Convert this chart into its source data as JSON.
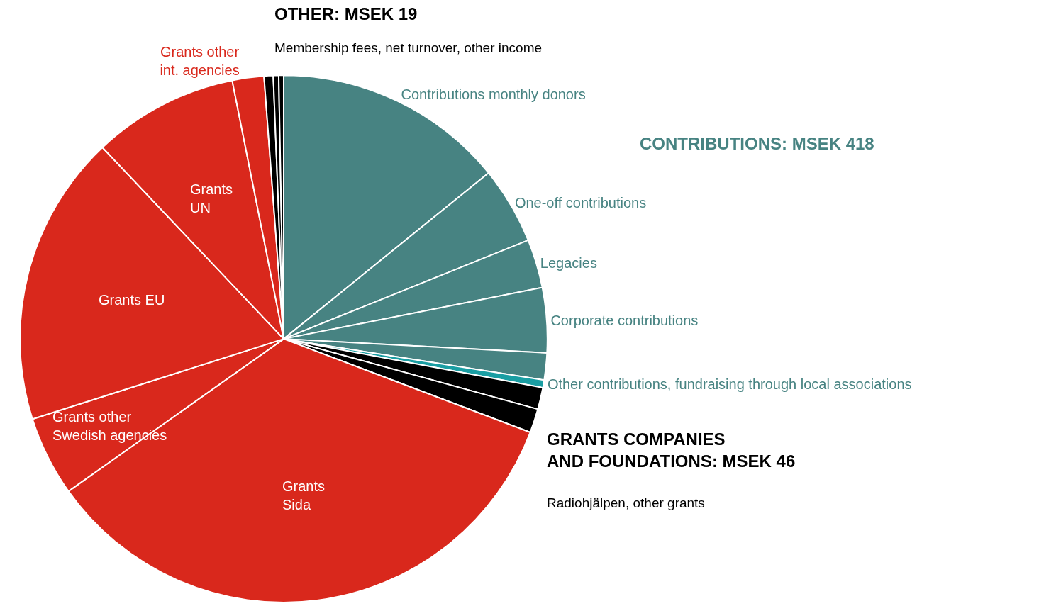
{
  "chart_data": {
    "type": "pie",
    "categories": [
      "Contributions monthly donors",
      "One-off contributions",
      "Legacies",
      "Corporate contributions",
      null,
      "Other contributions, fundraising through local associations",
      null,
      null,
      "Grants\nSida",
      "Grants other\nSwedish agencies",
      "Grants EU",
      "Grants\nUN",
      "Grants other\nint. agencies",
      null,
      null,
      null
    ],
    "values": [
      14.16,
      4.73,
      2.99,
      3.97,
      1.65,
      0.47,
      1.33,
      1.47,
      34.42,
      4.89,
      17.86,
      8.93,
      1.94,
      0.56,
      0.33,
      0.3
    ],
    "colors": [
      "#478382",
      "#478382",
      "#478382",
      "#478382",
      "#478382",
      "#1a9ea3",
      "#000000",
      "#000000",
      "#d9281c",
      "#d9281c",
      "#d9281c",
      "#d9281c",
      "#d9281c",
      "#000000",
      "#000000",
      "#000000"
    ],
    "annotations": [
      "OTHER: MSEK 19",
      "Membership fees, net turnover, other income",
      "CONTRIBUTIONS: MSEK 418",
      "GRANTS COMPANIES\nAND FOUNDATIONS: MSEK 46",
      "Radiohjälpen, other grants"
    ]
  }
}
